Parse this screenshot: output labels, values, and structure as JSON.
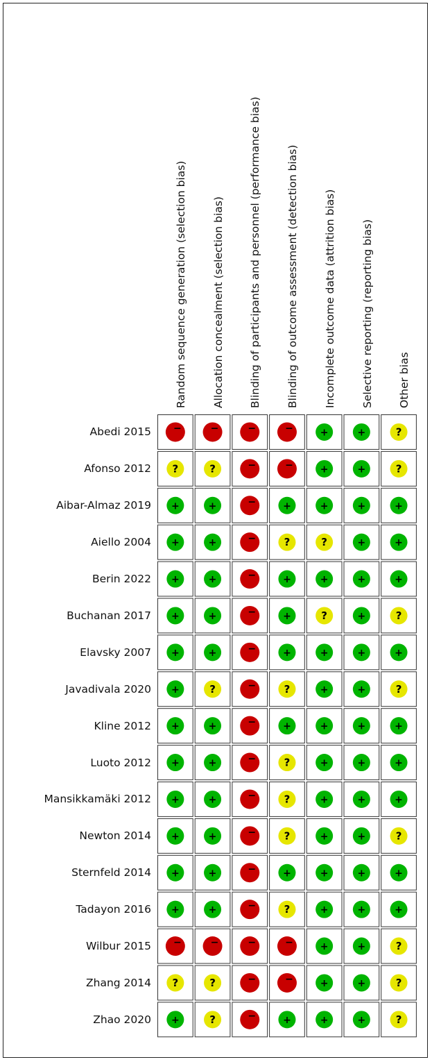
{
  "chart_data": {
    "type": "table",
    "domains": [
      "Random sequence generation (selection bias)",
      "Allocation concealment (selection bias)",
      "Blinding of participants and personnel (performance bias)",
      "Blinding of outcome assessment (detection bias)",
      "Incomplete outcome data (attrition bias)",
      "Selective reporting (reporting bias)",
      "Other bias"
    ],
    "studies": [
      {
        "name": "Abedi 2015",
        "ratings": [
          "high",
          "high",
          "high",
          "high",
          "low",
          "low",
          "unclear"
        ]
      },
      {
        "name": "Afonso 2012",
        "ratings": [
          "unclear",
          "unclear",
          "high",
          "high",
          "low",
          "low",
          "unclear"
        ]
      },
      {
        "name": "Aibar-Almaz 2019",
        "ratings": [
          "low",
          "low",
          "high",
          "low",
          "low",
          "low",
          "low"
        ]
      },
      {
        "name": "Aiello 2004",
        "ratings": [
          "low",
          "low",
          "high",
          "unclear",
          "unclear",
          "low",
          "low"
        ]
      },
      {
        "name": "Berin 2022",
        "ratings": [
          "low",
          "low",
          "high",
          "low",
          "low",
          "low",
          "low"
        ]
      },
      {
        "name": "Buchanan 2017",
        "ratings": [
          "low",
          "low",
          "high",
          "low",
          "unclear",
          "low",
          "unclear"
        ]
      },
      {
        "name": "Elavsky 2007",
        "ratings": [
          "low",
          "low",
          "high",
          "low",
          "low",
          "low",
          "low"
        ]
      },
      {
        "name": "Javadivala 2020",
        "ratings": [
          "low",
          "unclear",
          "high",
          "unclear",
          "low",
          "low",
          "unclear"
        ]
      },
      {
        "name": "Kline 2012",
        "ratings": [
          "low",
          "low",
          "high",
          "low",
          "low",
          "low",
          "low"
        ]
      },
      {
        "name": "Luoto 2012",
        "ratings": [
          "low",
          "low",
          "high",
          "unclear",
          "low",
          "low",
          "low"
        ]
      },
      {
        "name": "Mansikkamäki 2012",
        "ratings": [
          "low",
          "low",
          "high",
          "unclear",
          "low",
          "low",
          "low"
        ]
      },
      {
        "name": "Newton 2014",
        "ratings": [
          "low",
          "low",
          "high",
          "unclear",
          "low",
          "low",
          "unclear"
        ]
      },
      {
        "name": "Sternfeld 2014",
        "ratings": [
          "low",
          "low",
          "high",
          "low",
          "low",
          "low",
          "low"
        ]
      },
      {
        "name": "Tadayon 2016",
        "ratings": [
          "low",
          "low",
          "high",
          "unclear",
          "low",
          "low",
          "low"
        ]
      },
      {
        "name": "Wilbur 2015",
        "ratings": [
          "high",
          "high",
          "high",
          "high",
          "low",
          "low",
          "unclear"
        ]
      },
      {
        "name": "Zhang 2014",
        "ratings": [
          "unclear",
          "unclear",
          "high",
          "high",
          "low",
          "low",
          "unclear"
        ]
      },
      {
        "name": "Zhao 2020",
        "ratings": [
          "low",
          "unclear",
          "high",
          "low",
          "low",
          "low",
          "unclear"
        ]
      }
    ],
    "symbols": {
      "low": "+",
      "high": "−",
      "unclear": "?"
    },
    "colors": {
      "low": "#00b400",
      "high": "#c80000",
      "unclear": "#e6e600"
    }
  }
}
